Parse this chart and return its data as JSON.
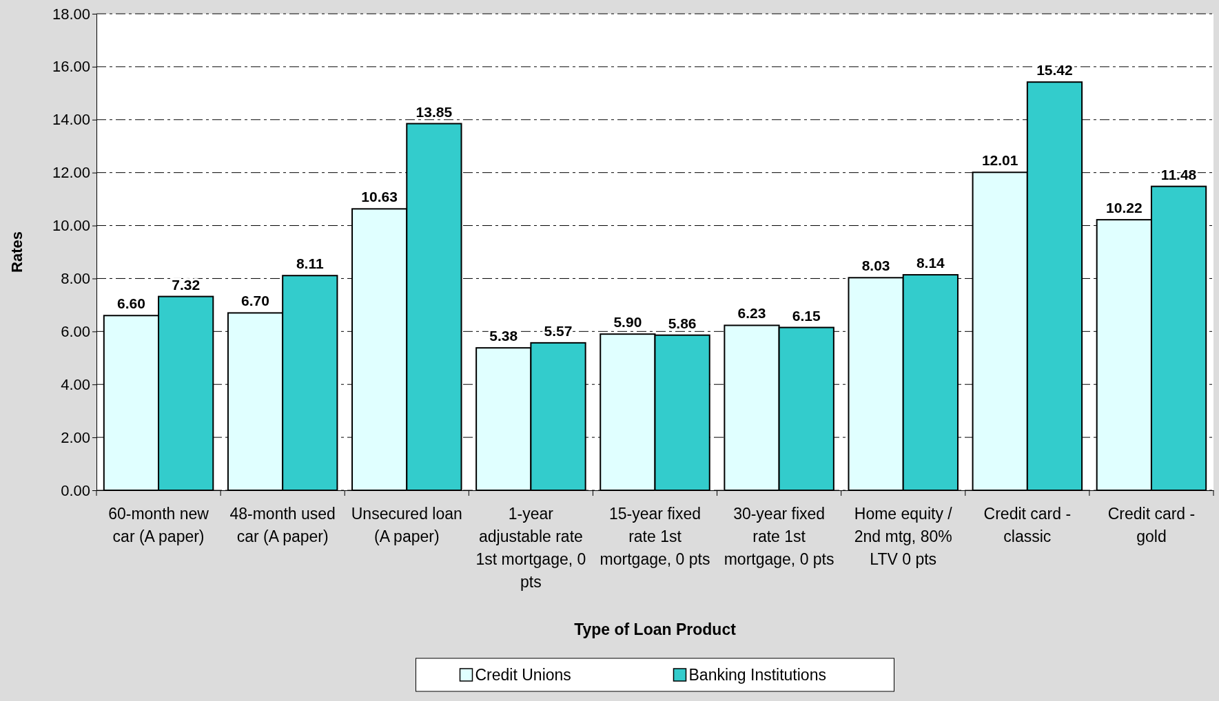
{
  "chart_data": {
    "type": "bar",
    "xlabel": "Type of Loan Product",
    "ylabel": "Rates",
    "categories": [
      "60-month new car (A paper)",
      "48-month used car (A paper)",
      "Unsecured loan (A paper)",
      "1-year adjustable rate 1st mortgage, 0 pts",
      "15-year fixed rate 1st mortgage, 0 pts",
      "30-year fixed rate 1st mortgage, 0 pts",
      "Home equity / 2nd mtg, 80% LTV 0 pts",
      "Credit card - classic",
      "Credit card - gold"
    ],
    "series": [
      {
        "name": "Credit Unions",
        "color": "#e0ffff",
        "values": [
          6.6,
          6.7,
          10.63,
          5.38,
          5.9,
          6.23,
          8.03,
          12.01,
          10.22
        ],
        "value_labels": [
          "6.60",
          "6.70",
          "10.63",
          "5.38",
          "5.90",
          "6.23",
          "8.03",
          "12.01",
          "10.22"
        ]
      },
      {
        "name": "Banking Institutions",
        "color": "#33cccc",
        "values": [
          7.32,
          8.11,
          13.85,
          5.57,
          5.86,
          6.15,
          8.14,
          15.42,
          11.48
        ],
        "value_labels": [
          "7.32",
          "8.11",
          "13.85",
          "5.57",
          "5.86",
          "6.15",
          "8.14",
          "15.42",
          "11.48"
        ]
      }
    ],
    "ylim": [
      0,
      18
    ],
    "yticks": [
      {
        "value": 0,
        "label": "0.00"
      },
      {
        "value": 2,
        "label": "2.00"
      },
      {
        "value": 4,
        "label": "4.00"
      },
      {
        "value": 6,
        "label": "6.00"
      },
      {
        "value": 8,
        "label": "8.00"
      },
      {
        "value": 10,
        "label": "10.00"
      },
      {
        "value": 12,
        "label": "12.00"
      },
      {
        "value": 14,
        "label": "14.00"
      },
      {
        "value": 16,
        "label": "16.00"
      },
      {
        "value": 18,
        "label": "18.00"
      }
    ],
    "grid": "y",
    "legend": "bottom"
  }
}
